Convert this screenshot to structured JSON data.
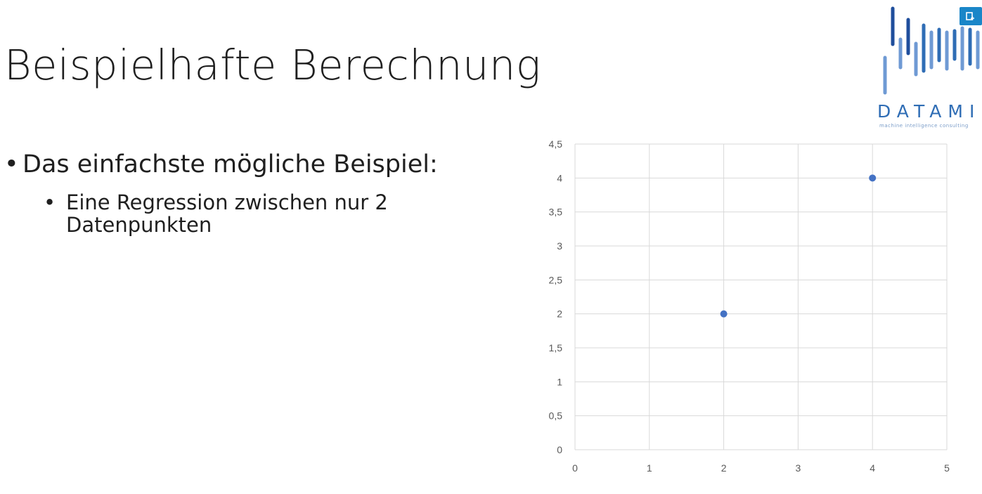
{
  "slide": {
    "title": "Beispielhafte Berechnung",
    "bullet_level1": "Das einfachste mögliche Beispiel:",
    "bullet_level2": "Eine Regression zwischen nur 2 Datenpunkten",
    "bullet_symbol": "•"
  },
  "logo": {
    "name": "DATAMI",
    "tagline": "machine intelligence consulting",
    "colors": [
      "#1f4e9c",
      "#2f6db5",
      "#6f9ad4"
    ]
  },
  "corner_button": {
    "icon": "screen-capture-icon",
    "color": "#1a86c8"
  },
  "chart_data": {
    "type": "scatter",
    "title": "",
    "xlabel": "",
    "ylabel": "",
    "xlim": [
      0,
      5
    ],
    "ylim": [
      0,
      4.5
    ],
    "xticks": [
      "0",
      "1",
      "2",
      "3",
      "4",
      "5"
    ],
    "yticks": [
      "0",
      "0,5",
      "1",
      "1,5",
      "2",
      "2,5",
      "3",
      "3,5",
      "4",
      "4,5"
    ],
    "points": [
      {
        "x": 2,
        "y": 2
      },
      {
        "x": 4,
        "y": 4
      }
    ],
    "grid": true,
    "point_color": "#4472c4",
    "grid_color": "#d9d9d9"
  }
}
